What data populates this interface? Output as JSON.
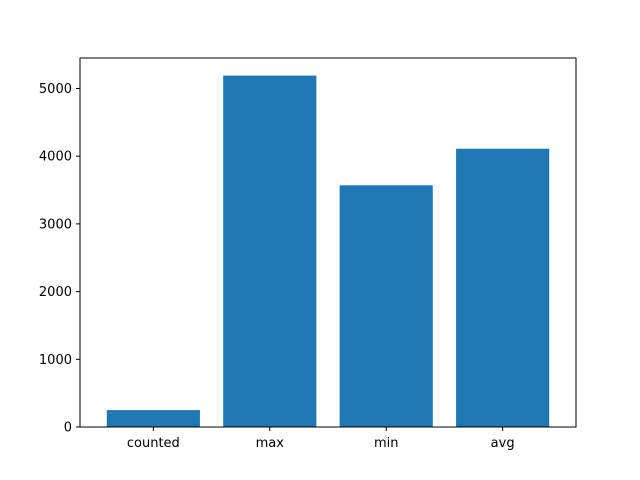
{
  "chart_data": {
    "type": "bar",
    "categories": [
      "counted",
      "max",
      "min",
      "avg"
    ],
    "values": [
      250,
      5190,
      3570,
      4110
    ],
    "title": "",
    "xlabel": "",
    "ylabel": "",
    "ylim": [
      0,
      5450
    ],
    "yticks": [
      0,
      1000,
      2000,
      3000,
      4000,
      5000
    ],
    "grid": false,
    "legend": "none",
    "bar_color": "#1f77b4",
    "axis_color": "#000000"
  }
}
